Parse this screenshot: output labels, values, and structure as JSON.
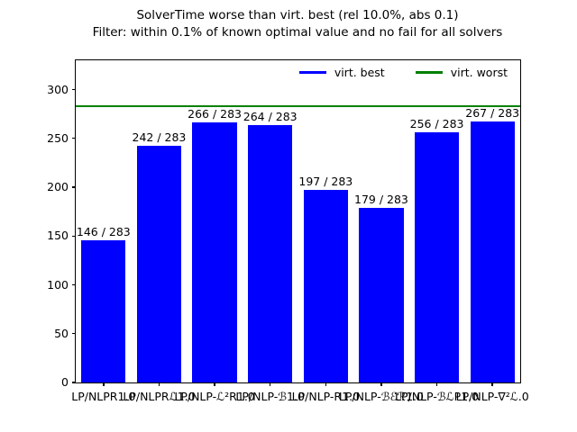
{
  "title": {
    "line1": "SolverTime worse than virt. best (rel 10.0%, abs 0.1)",
    "line2": "Filter: within 0.1% of known optimal value and no fail for all solvers"
  },
  "legend": [
    {
      "label": "virt. best",
      "color": "#0000ff"
    },
    {
      "label": "virt. worst",
      "color": "#008000"
    }
  ],
  "chart_data": {
    "type": "bar",
    "title": "SolverTime worse than virt. best (rel 10.0%, abs 0.1)",
    "subtitle": "Filter: within 0.1% of known optimal value and no fail for all solvers",
    "categories": [
      "LP/NLPR1.0",
      "LP/NLPRℒ1.0",
      "LP/NLP-ℒ²R1.0",
      "LP/NLP-ℬ1.0",
      "LP/NLP-R1.0",
      "LP/NLP-ℬℰℛ1.0",
      "LP/NLP-ℬℒP1.0",
      "LP/NLP-∇²ℒ.0"
    ],
    "values": [
      146,
      242,
      266,
      264,
      197,
      179,
      256,
      267
    ],
    "bar_labels": [
      "146 / 283",
      "242 / 283",
      "266 / 283",
      "264 / 283",
      "197 / 283",
      "179 / 283",
      "256 / 283",
      "267 / 283"
    ],
    "instances_total": 283,
    "bar_color": "#0000ff",
    "hline": {
      "value": 283,
      "color": "#008000",
      "series": "virt. worst"
    },
    "ylabel": "",
    "xlabel": "",
    "ylim": [
      0,
      330
    ],
    "yticks": [
      0,
      50,
      100,
      150,
      200,
      250,
      300
    ],
    "grid": false,
    "legend_position": "upper center, frameless, horizontal"
  }
}
